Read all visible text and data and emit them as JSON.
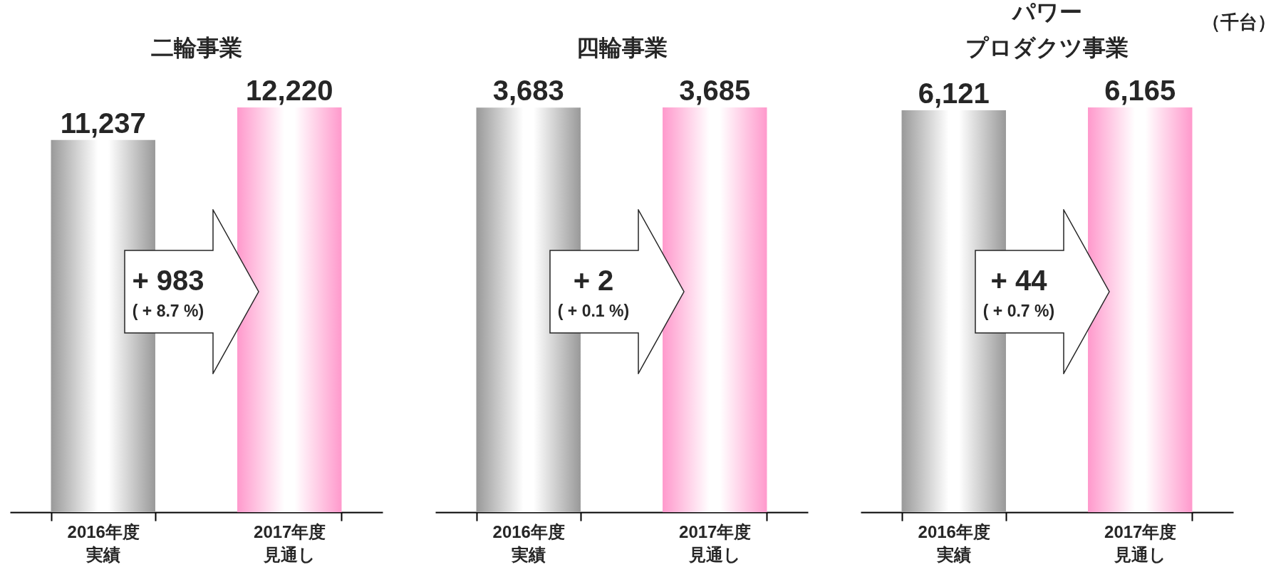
{
  "chart_data": [
    {
      "type": "bar",
      "title": "二輪事業",
      "categories": [
        "2016年度実績",
        "2017年度見通し"
      ],
      "colors": [
        "#999999",
        "#ff99cc"
      ],
      "values": [
        11237,
        12220
      ],
      "value_labels": [
        "11,237",
        "12,220"
      ],
      "annotations": [
        "+ 983",
        "( + 8.7 %)"
      ]
    },
    {
      "type": "bar",
      "title": "四輪事業",
      "categories": [
        "2016年度実績",
        "2017年度見通し"
      ],
      "colors": [
        "#999999",
        "#ff99cc"
      ],
      "values": [
        3683,
        3685
      ],
      "value_labels": [
        "3,683",
        "3,685"
      ],
      "annotations": [
        "+ 2",
        "( + 0.1 %)"
      ]
    },
    {
      "type": "bar",
      "title": "パワープロダクツ事業",
      "ylabel": "（千台）",
      "categories": [
        "2016年度実績",
        "2017年度見通し"
      ],
      "colors": [
        "#999999",
        "#ff99cc"
      ],
      "values": [
        6121,
        6165
      ],
      "value_labels": [
        "6,121",
        "6,165"
      ],
      "annotations": [
        "+ 44",
        "( + 0.7 %)"
      ]
    }
  ]
}
